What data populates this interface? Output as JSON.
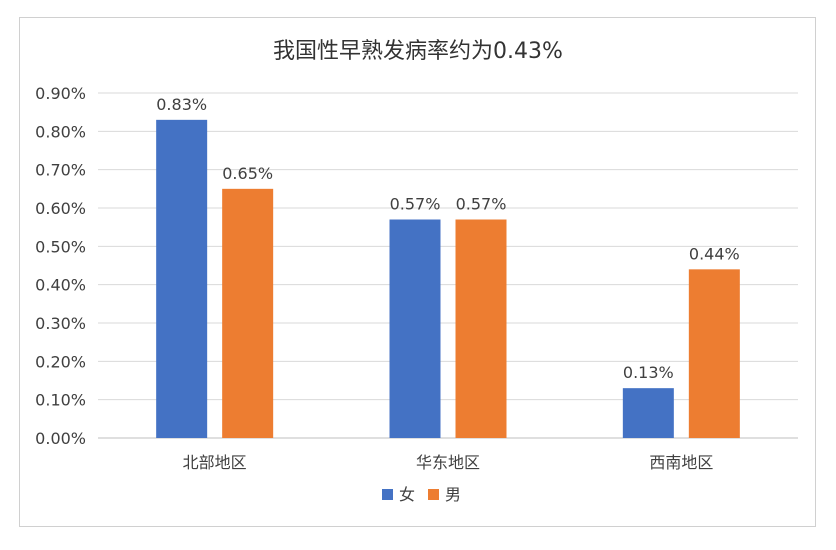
{
  "chart_data": {
    "type": "bar",
    "title": "我国性早熟发病率约为0.43%",
    "categories": [
      "北部地区",
      "华东地区",
      "西南地区"
    ],
    "series": [
      {
        "name": "女",
        "values": [
          0.83,
          0.57,
          0.13
        ],
        "labels": [
          "0.83%",
          "0.57%",
          "0.13%"
        ],
        "color": "#4472C4"
      },
      {
        "name": "男",
        "values": [
          0.65,
          0.57,
          0.44
        ],
        "labels": [
          "0.65%",
          "0.57%",
          "0.44%"
        ],
        "color": "#ED7D31"
      }
    ],
    "ylim": [
      0,
      0.9
    ],
    "yticks": [
      "0.00%",
      "0.10%",
      "0.20%",
      "0.30%",
      "0.40%",
      "0.50%",
      "0.60%",
      "0.70%",
      "0.80%",
      "0.90%"
    ],
    "xlabel": "",
    "ylabel": "",
    "grid": true,
    "legend_position": "bottom"
  }
}
